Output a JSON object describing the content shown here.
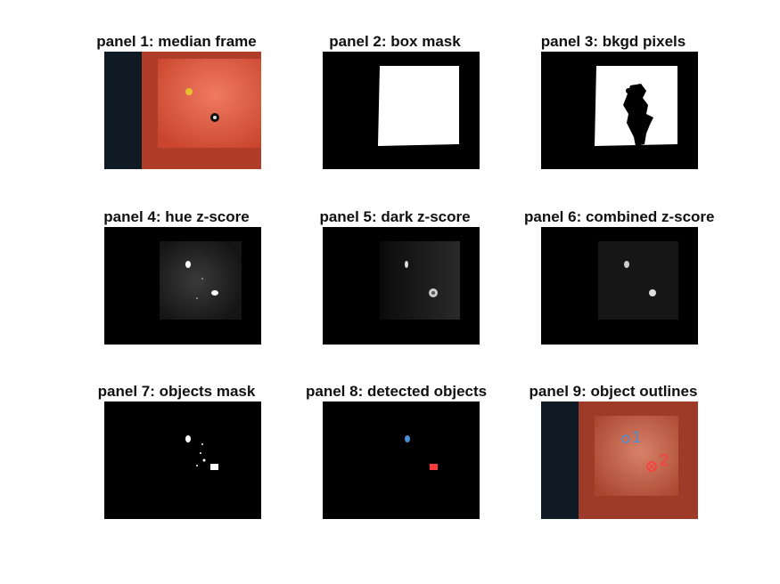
{
  "panels": [
    {
      "title": "panel 1: median frame"
    },
    {
      "title": "panel 2: box mask"
    },
    {
      "title": "panel 3: bkgd pixels"
    },
    {
      "title": "panel 4: hue z-score"
    },
    {
      "title": "panel 5: dark z-score"
    },
    {
      "title": "panel 6: combined z-score"
    },
    {
      "title": "panel 7: objects mask"
    },
    {
      "title": "panel 8: detected objects"
    },
    {
      "title": "panel 9: object outlines"
    }
  ],
  "objects": [
    {
      "label": "1",
      "color": "#4a8fd6"
    },
    {
      "label": "2",
      "color": "#ff3b3b"
    }
  ],
  "colors": {
    "box_orange": "#e5674e",
    "background": "#ffffff"
  }
}
